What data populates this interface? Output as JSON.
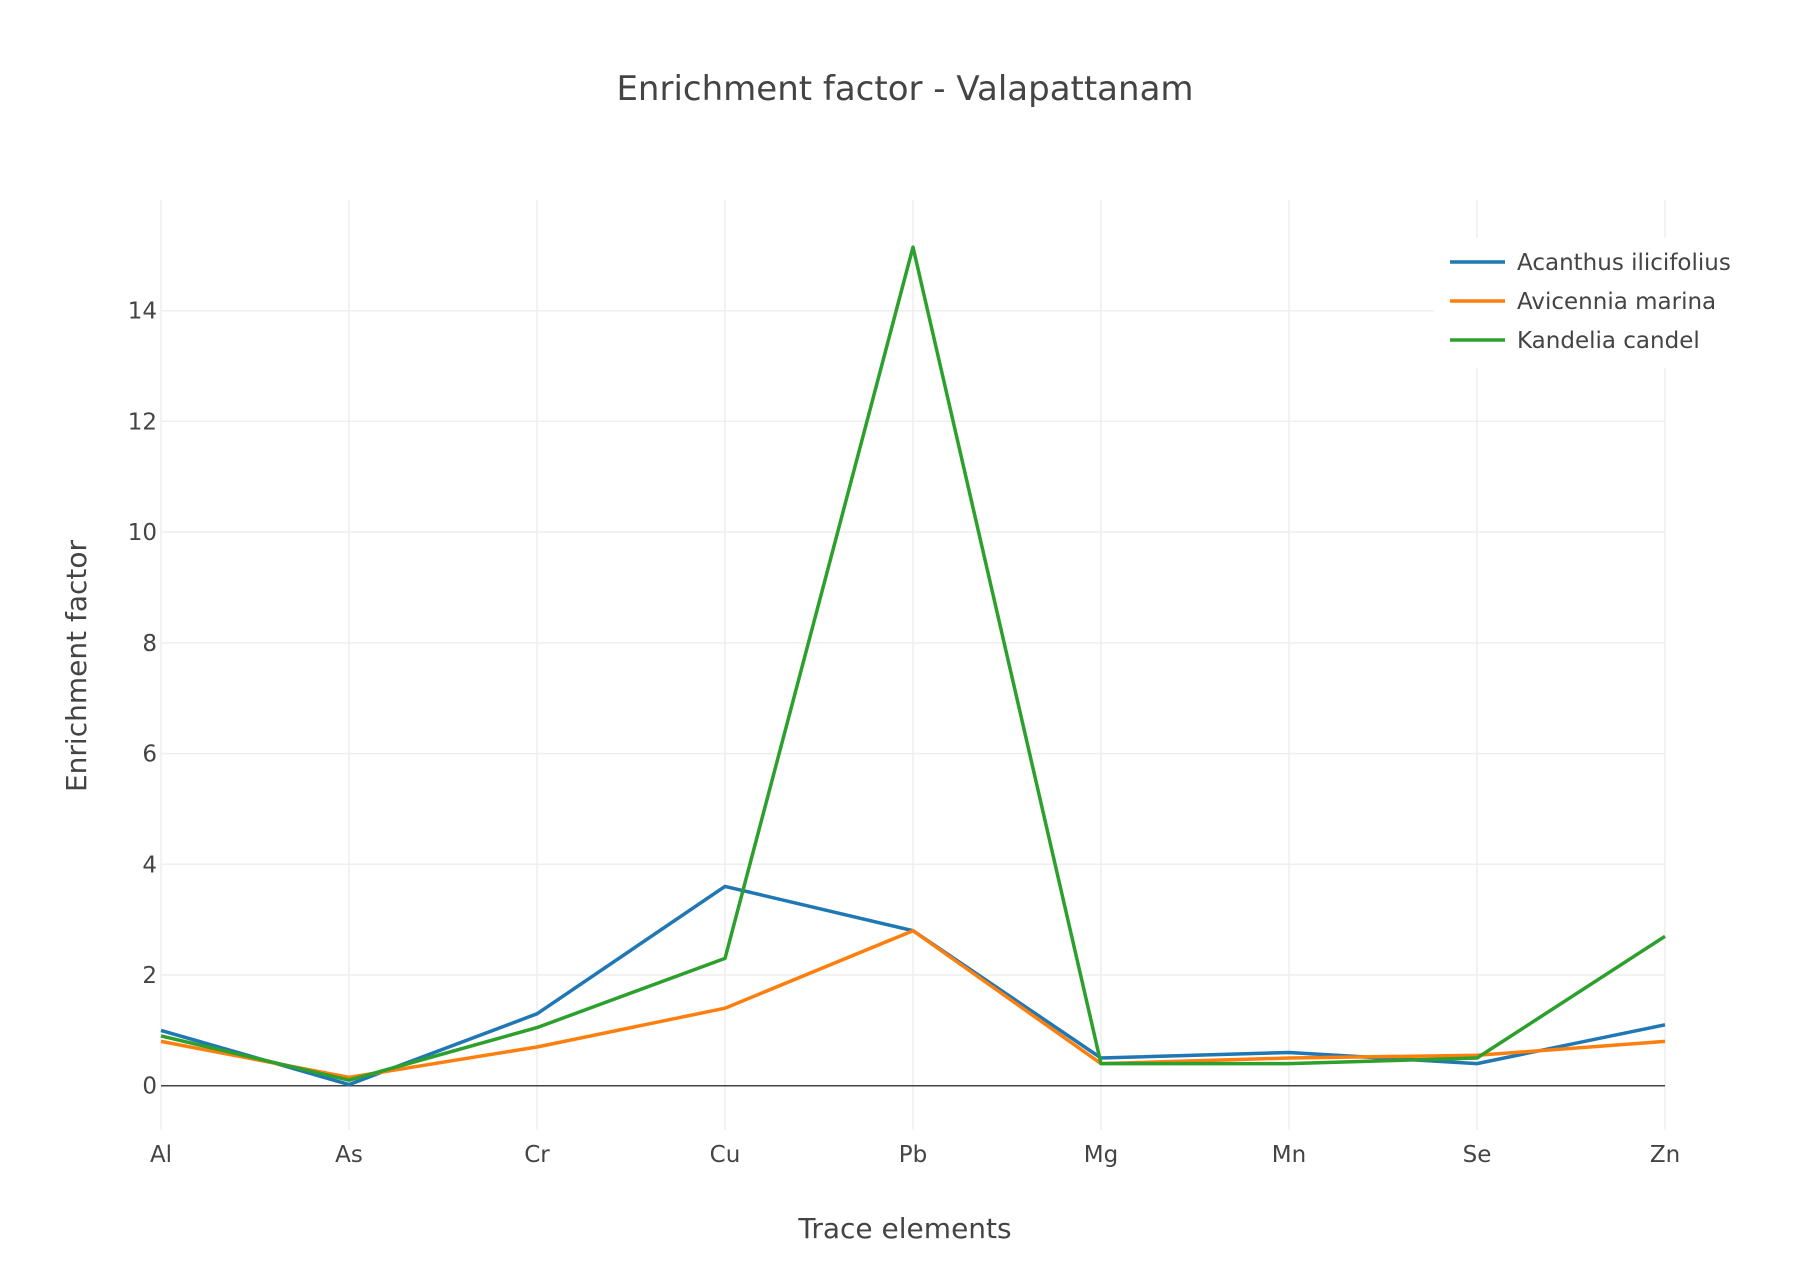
{
  "chart_data": {
    "type": "line",
    "title": "Enrichment factor - Valapattanam",
    "xlabel": "Trace elements",
    "ylabel": "Enrichment factor",
    "categories": [
      "Al",
      "As",
      "Cr",
      "Cu",
      "Pb",
      "Mg",
      "Mn",
      "Se",
      "Zn"
    ],
    "yticks": [
      0,
      2,
      4,
      6,
      8,
      10,
      12,
      14
    ],
    "ylim": [
      -0.8,
      16
    ],
    "grid": true,
    "legend_position": "top-right",
    "series": [
      {
        "name": "Acanthus ilicifolius",
        "color": "#1f77b4",
        "values": [
          1.0,
          0.02,
          1.3,
          3.6,
          2.8,
          0.5,
          0.6,
          0.4,
          1.1
        ]
      },
      {
        "name": "Avicennia marina",
        "color": "#ff7f0e",
        "values": [
          0.8,
          0.15,
          0.7,
          1.4,
          2.8,
          0.4,
          0.5,
          0.55,
          0.8
        ]
      },
      {
        "name": "Kandelia candel",
        "color": "#2ca02c",
        "values": [
          0.9,
          0.1,
          1.05,
          2.3,
          15.15,
          0.4,
          0.4,
          0.5,
          2.7
        ]
      }
    ]
  }
}
